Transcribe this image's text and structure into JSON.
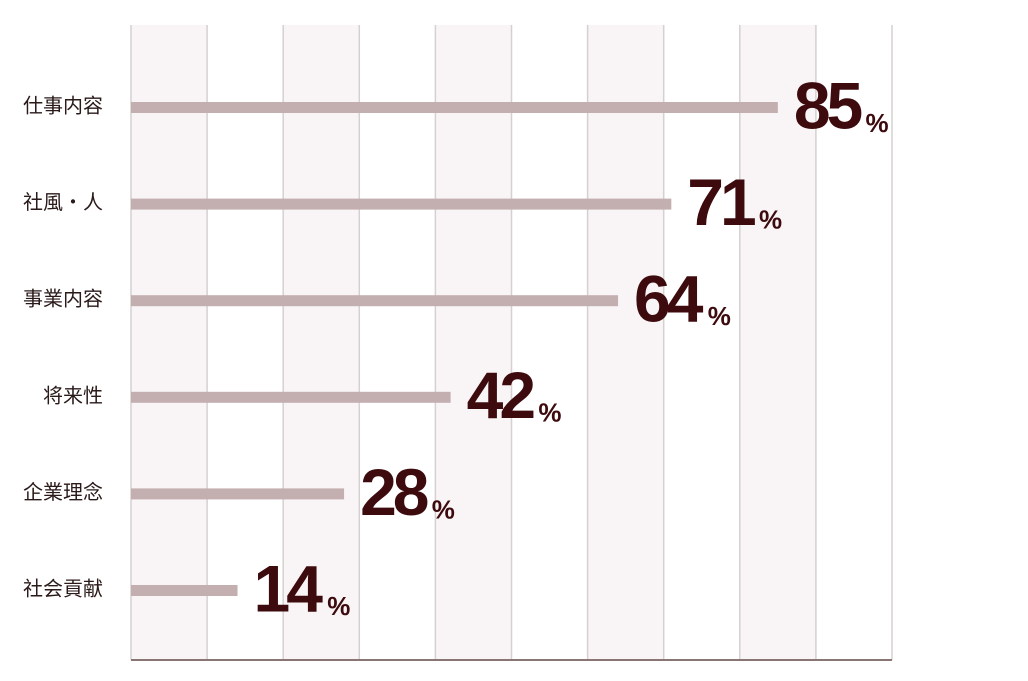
{
  "chart_data": {
    "type": "bar",
    "orientation": "horizontal",
    "categories": [
      "仕事内容",
      "社風・人",
      "事業内容",
      "将来性",
      "企業理念",
      "社会貢献"
    ],
    "values": [
      85,
      71,
      64,
      42,
      28,
      14
    ],
    "unit": "%",
    "color": "#c4afb0",
    "label_color": "#3d0a0d",
    "xlim": [
      0,
      100
    ],
    "xticks": [
      0,
      10,
      20,
      30,
      40,
      50,
      60,
      70,
      80,
      90,
      100
    ],
    "grid": true
  }
}
